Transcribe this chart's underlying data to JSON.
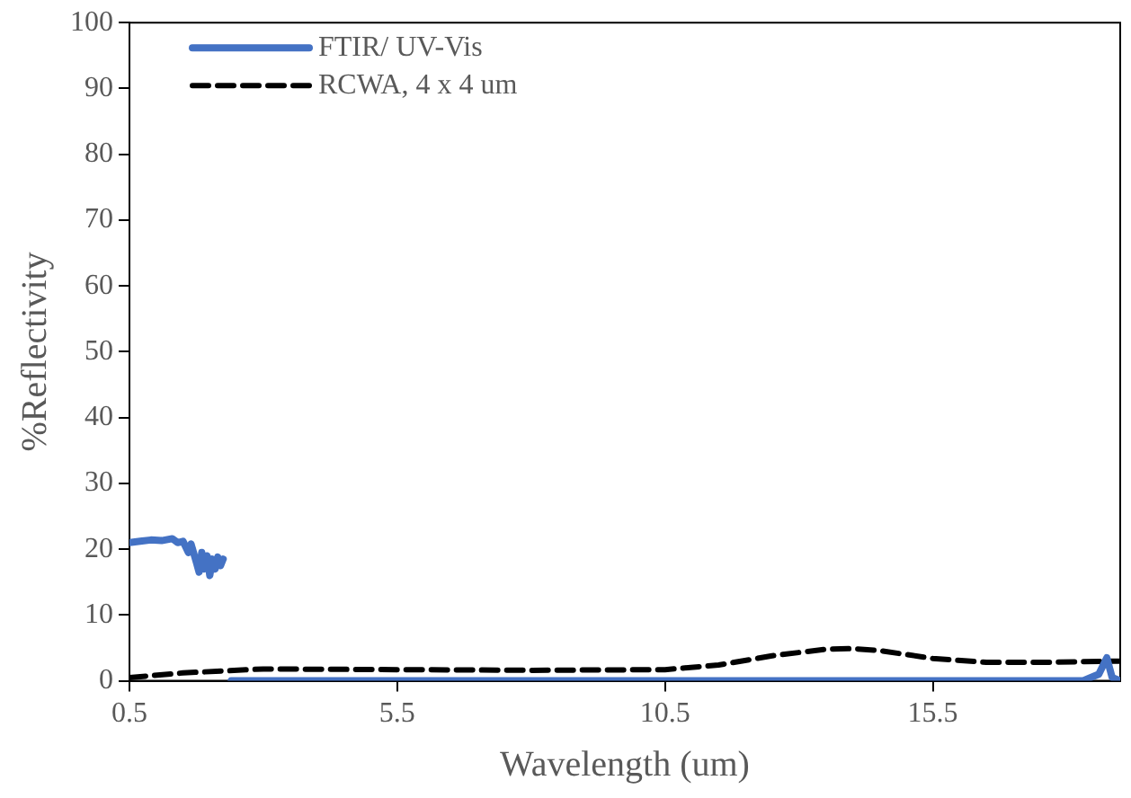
{
  "chart_data": {
    "type": "line",
    "xlabel": "Wavelength (um)",
    "ylabel": "%Reflectivity",
    "xlim": [
      0.5,
      19
    ],
    "xticks": [
      0.5,
      5.5,
      10.5,
      15.5
    ],
    "ylim": [
      0,
      100
    ],
    "yticks": [
      0,
      10,
      20,
      30,
      40,
      50,
      60,
      70,
      80,
      90,
      100
    ],
    "grid": false,
    "legend": "top left",
    "marker": "none",
    "series": [
      {
        "name": "FTIR/ UV-Vis",
        "color": "#4472c4",
        "line_style": "solid",
        "x": [
          0.5,
          0.7,
          0.9,
          1.1,
          1.3,
          1.4,
          1.5,
          1.6,
          1.65,
          1.75,
          1.8,
          1.85,
          1.9,
          1.95,
          2.0,
          2.05,
          2.1,
          2.15,
          2.2,
          2.25,
          2.3,
          2.4,
          10,
          18.3,
          18.6,
          18.75,
          18.85,
          19
        ],
        "values": [
          21,
          21.2,
          21.4,
          21.3,
          21.6,
          21,
          21.2,
          19.5,
          20.8,
          18,
          16.5,
          19.5,
          17,
          19,
          16,
          18.5,
          17,
          18.8,
          17.5,
          18.5,
          null,
          0,
          0,
          0,
          1,
          3.5,
          0.5,
          0
        ]
      },
      {
        "name": "RCWA, 4 x 4 um",
        "color": "#000000",
        "line_style": "dashed",
        "x": [
          0.5,
          1.5,
          3,
          5.5,
          8,
          10.5,
          11.5,
          12.5,
          13.5,
          14,
          14.5,
          15.5,
          16.5,
          17.5,
          19
        ],
        "values": [
          0.5,
          1.2,
          1.8,
          1.7,
          1.6,
          1.7,
          2.4,
          3.8,
          4.8,
          4.9,
          4.6,
          3.4,
          2.8,
          2.8,
          3
        ]
      }
    ]
  }
}
